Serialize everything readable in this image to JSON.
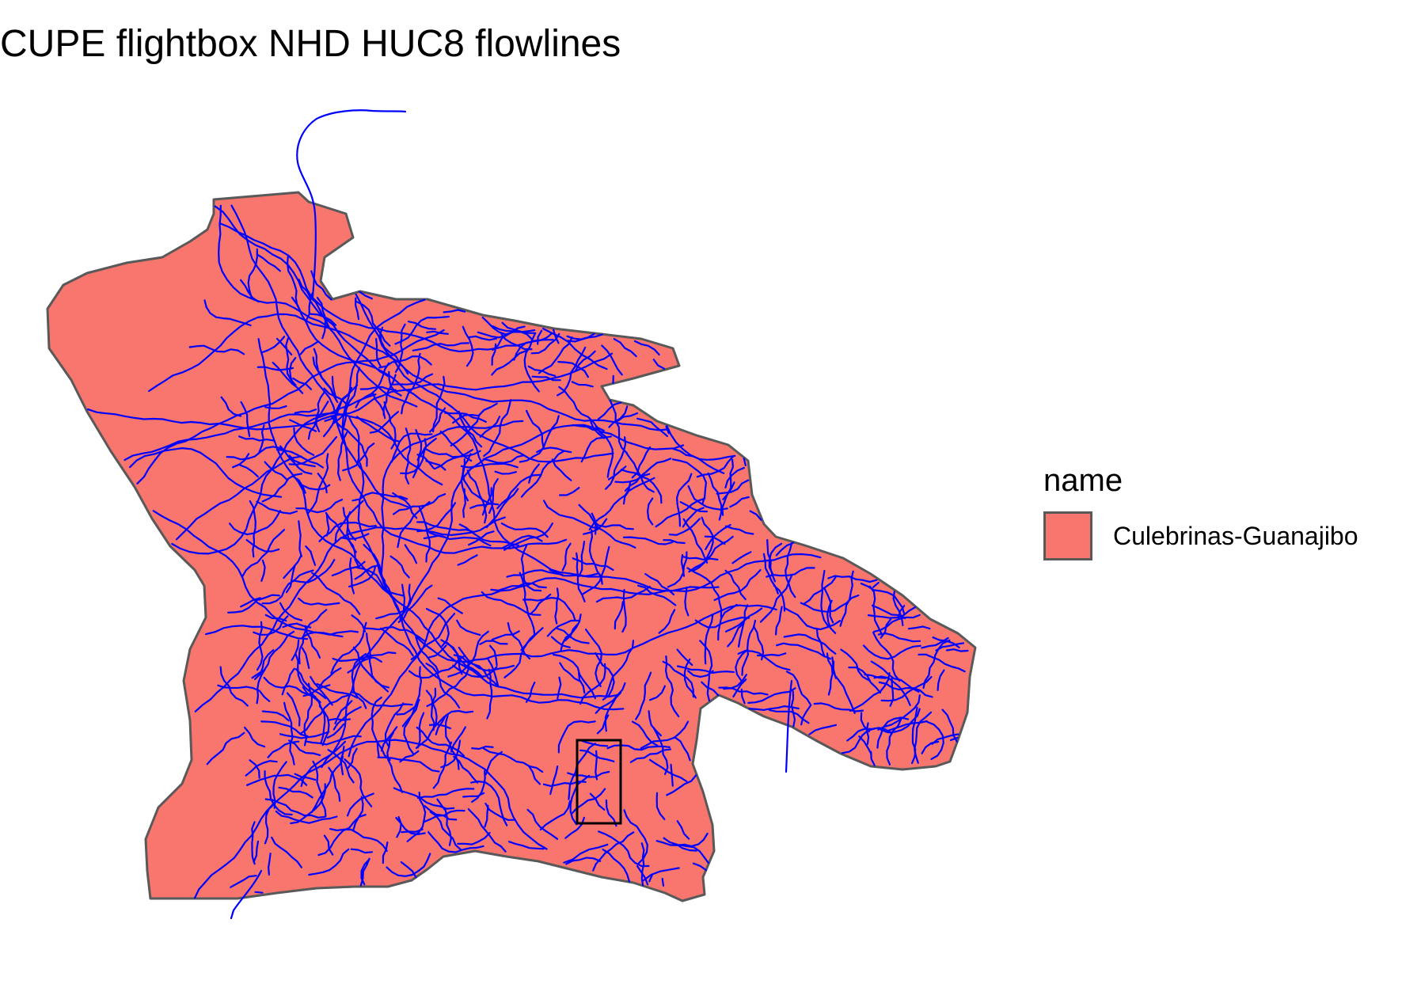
{
  "title": "CUPE flightbox NHD HUC8 flowlines",
  "colors": {
    "watershed_fill": "#F8766D",
    "watershed_border": "#595959",
    "flowlines": "#0000FF",
    "flightbox": "#000000"
  },
  "legend": {
    "title": "name",
    "entries": [
      {
        "label": "Culebrinas-Guanajibo",
        "fill": "#F8766D"
      }
    ]
  },
  "map_layers": [
    "watershed",
    "flowlines",
    "flightbox"
  ]
}
